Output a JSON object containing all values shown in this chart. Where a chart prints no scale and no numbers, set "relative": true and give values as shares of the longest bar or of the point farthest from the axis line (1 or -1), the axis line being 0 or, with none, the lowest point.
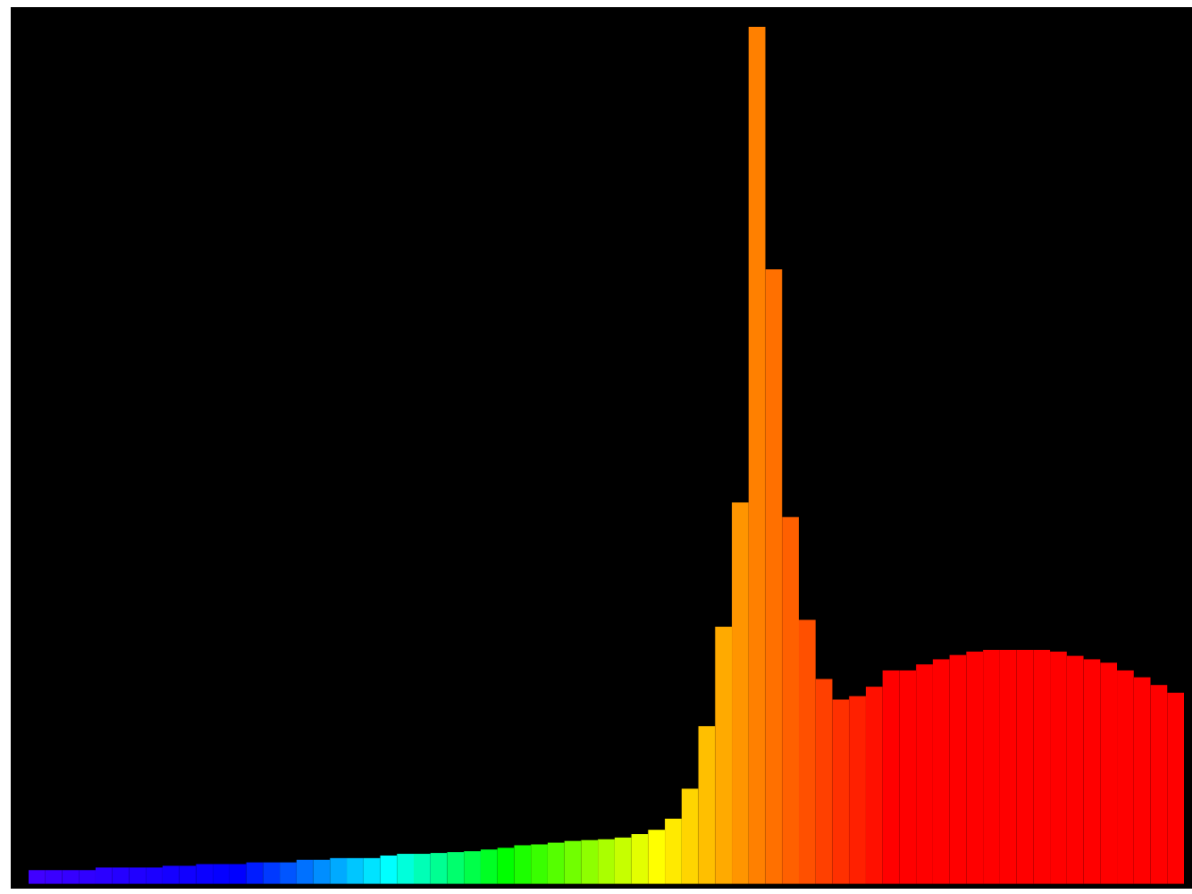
{
  "chart_data": {
    "type": "bar",
    "relative": true,
    "categories": [
      null,
      null,
      null,
      null,
      null,
      null,
      null,
      null,
      null,
      null,
      null,
      null,
      null,
      null,
      null,
      null,
      null,
      null,
      null,
      null,
      null,
      null,
      null,
      null,
      null,
      null,
      null,
      null,
      null,
      null,
      null,
      null,
      null,
      null,
      null,
      null,
      null,
      null,
      null,
      null,
      null,
      null,
      null,
      null,
      null,
      null,
      null,
      null,
      null,
      null,
      null,
      null,
      null,
      null,
      null,
      null,
      null,
      null,
      null,
      null,
      null,
      null,
      null,
      null,
      null,
      null,
      null,
      null,
      null
    ],
    "values": [
      0.016,
      0.016,
      0.016,
      0.016,
      0.019,
      0.019,
      0.019,
      0.019,
      0.021,
      0.021,
      0.023,
      0.023,
      0.023,
      0.025,
      0.025,
      0.025,
      0.028,
      0.028,
      0.03,
      0.03,
      0.03,
      0.033,
      0.035,
      0.035,
      0.036,
      0.037,
      0.038,
      0.04,
      0.042,
      0.045,
      0.046,
      0.048,
      0.05,
      0.051,
      0.052,
      0.054,
      0.058,
      0.063,
      0.076,
      0.111,
      0.184,
      0.3,
      0.445,
      1,
      0.717,
      0.428,
      0.308,
      0.239,
      0.215,
      0.219,
      0.23,
      0.249,
      0.249,
      0.256,
      0.262,
      0.267,
      0.271,
      0.273,
      0.273,
      0.273,
      0.273,
      0.271,
      0.266,
      0.262,
      0.258,
      0.249,
      0.241,
      0.232,
      0.223
    ],
    "colors": [
      "#4000ff",
      "#3a00ff",
      "#3500ff",
      "#3000ff",
      "#2b00ff",
      "#2500ff",
      "#2000ff",
      "#1b00ff",
      "#1500ff",
      "#1000ff",
      "#0b00ff",
      "#0500ff",
      "#0000ff",
      "#001cff",
      "#0039ff",
      "#0055ff",
      "#0071ff",
      "#008eff",
      "#00aaff",
      "#00c6ff",
      "#00e3ff",
      "#00ffff",
      "#00ffdb",
      "#00ffb6",
      "#00ff92",
      "#00ff6d",
      "#00ff49",
      "#00ff24",
      "#00ff00",
      "#1cff00",
      "#39ff00",
      "#55ff00",
      "#71ff00",
      "#8eff00",
      "#aaff00",
      "#c6ff00",
      "#e3ff00",
      "#ffff00",
      "#ffea00",
      "#ffd500",
      "#ffbf00",
      "#ffaa00",
      "#ff9500",
      "#ff8000",
      "#ff7000",
      "#ff6000",
      "#ff5000",
      "#ff4000",
      "#ff3000",
      "#ff2000",
      "#ff1000",
      "#ff0000",
      "#ff0000",
      "#ff0000",
      "#ff0000",
      "#ff0000",
      "#ff0000",
      "#ff0000",
      "#ff0000",
      "#ff0000",
      "#ff0000",
      "#ff0000",
      "#ff0000",
      "#ff0000",
      "#ff0000",
      "#ff0000",
      "#ff0000",
      "#ff0000",
      "#ff0000"
    ]
  }
}
